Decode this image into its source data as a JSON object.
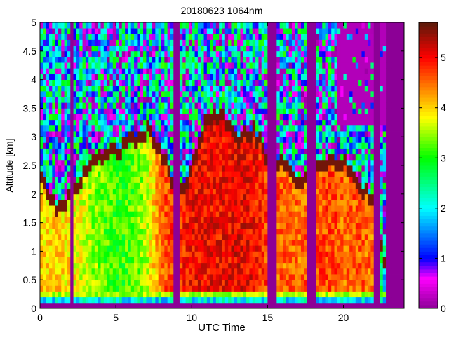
{
  "chart_data": {
    "type": "heatmap",
    "title": "20180623 1064nm",
    "xlabel": "UTC Time",
    "ylabel": "Altitude [km]",
    "xlim": [
      0,
      24
    ],
    "ylim": [
      0,
      5
    ],
    "clim": [
      0,
      5.7
    ],
    "xticks": [
      0,
      5,
      10,
      15,
      20
    ],
    "yticks": [
      0,
      0.5,
      1,
      1.5,
      2,
      2.5,
      3,
      3.5,
      4,
      4.5,
      5
    ],
    "ytick_labels": [
      "0",
      "0.5",
      "1",
      "1.5",
      "2",
      "2.5",
      "3",
      "3.5",
      "4",
      "4.5",
      "5"
    ],
    "colorbar_ticks": [
      0,
      1,
      2,
      3,
      4,
      5
    ],
    "colormap": [
      {
        "v": 0,
        "c": "#8c0096"
      },
      {
        "v": 0.6,
        "c": "#ff00ff"
      },
      {
        "v": 1,
        "c": "#0000ff"
      },
      {
        "v": 2,
        "c": "#00ffff"
      },
      {
        "v": 3,
        "c": "#00ff00"
      },
      {
        "v": 3.8,
        "c": "#ffff00"
      },
      {
        "v": 4.4,
        "c": "#ff8000"
      },
      {
        "v": 5,
        "c": "#ff0000"
      },
      {
        "v": 5.7,
        "c": "#5a1a0a"
      }
    ],
    "hours": [
      0,
      1,
      2,
      3,
      4,
      5,
      6,
      7,
      8,
      9,
      10,
      11,
      12,
      13,
      14,
      15,
      16,
      17,
      18,
      19,
      20,
      21,
      22,
      23
    ],
    "cloud_top_km": [
      2.3,
      1.8,
      2.0,
      2.5,
      2.7,
      2.8,
      3.0,
      3.2,
      2.7,
      2.0,
      2.6,
      3.4,
      3.4,
      3.0,
      3.2,
      2.6,
      2.6,
      2.2,
      2.6,
      2.6,
      2.6,
      2.1,
      2.0,
      0
    ],
    "boundary_layer_mean_value": [
      4.0,
      4.0,
      3.9,
      3.6,
      3.3,
      3.1,
      3.2,
      3.6,
      4.6,
      4.8,
      5.0,
      5.0,
      5.0,
      5.1,
      5.0,
      4.6,
      4.5,
      4.5,
      4.6,
      4.7,
      4.5,
      4.6,
      4.4,
      0
    ],
    "no_data_intervals_h": [
      [
        2.0,
        2.2
      ],
      [
        8.8,
        9.2
      ],
      [
        15.0,
        15.6
      ],
      [
        17.5,
        18.2
      ],
      [
        21.9,
        22.3
      ],
      [
        22.8,
        24
      ]
    ]
  }
}
